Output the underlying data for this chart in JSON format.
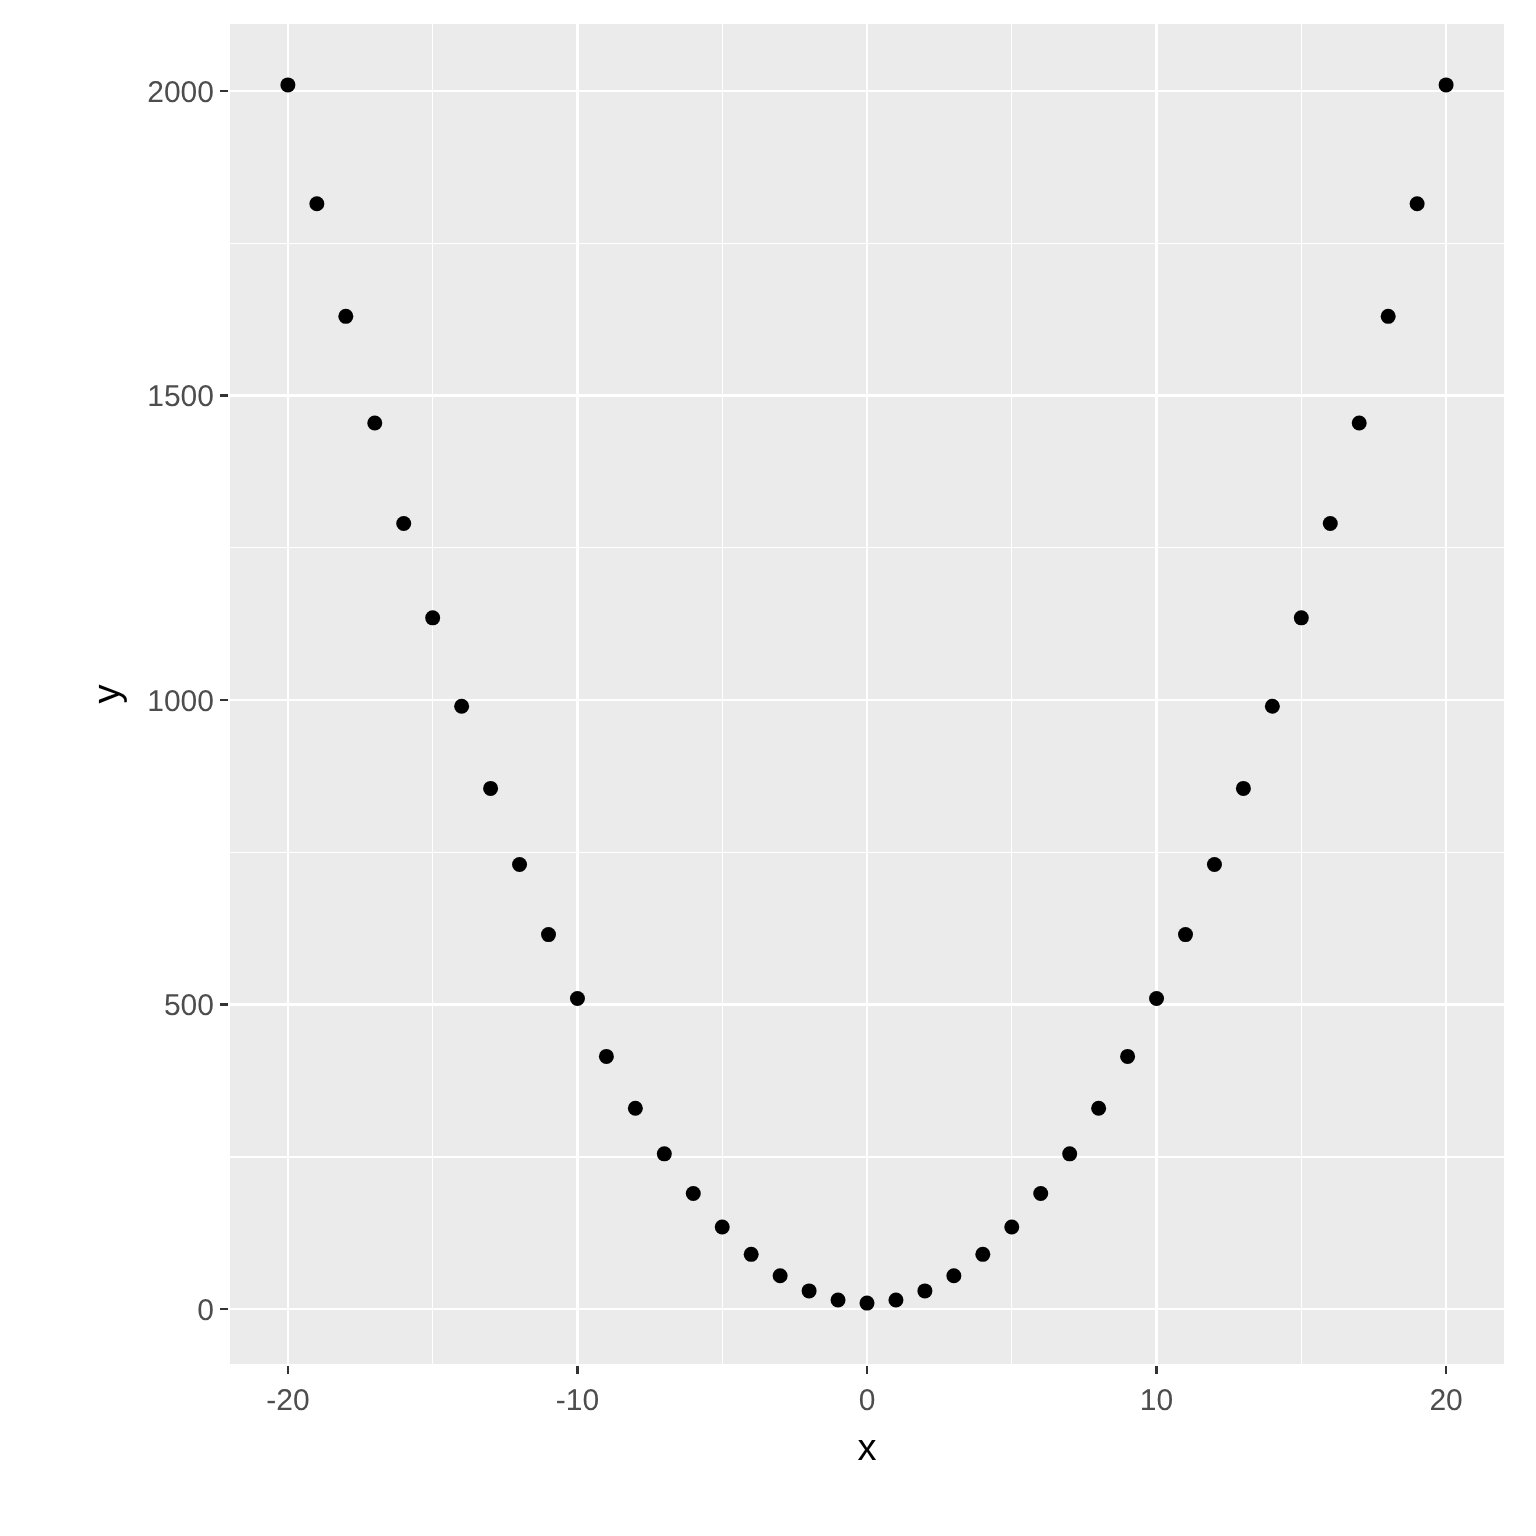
{
  "chart_data": {
    "type": "scatter",
    "xlabel": "x",
    "ylabel": "y",
    "x": [
      -20,
      -19,
      -18,
      -17,
      -16,
      -15,
      -14,
      -13,
      -12,
      -11,
      -10,
      -9,
      -8,
      -7,
      -6,
      -5,
      -4,
      -3,
      -2,
      -1,
      0,
      1,
      2,
      3,
      4,
      5,
      6,
      7,
      8,
      9,
      10,
      11,
      12,
      13,
      14,
      15,
      16,
      17,
      18,
      19,
      20
    ],
    "series": [
      {
        "color": "#000000",
        "values": [
          2010,
          1815,
          1630,
          1455,
          1290,
          1135,
          990,
          855,
          730,
          615,
          510,
          415,
          330,
          255,
          190,
          135,
          90,
          55,
          30,
          15,
          10,
          15,
          30,
          55,
          90,
          135,
          190,
          255,
          330,
          415,
          510,
          615,
          730,
          855,
          990,
          1135,
          1290,
          1455,
          1630,
          1815,
          2010
        ]
      }
    ],
    "xlim": [
      -22,
      22
    ],
    "xticks": [
      -20,
      -10,
      0,
      10,
      20
    ],
    "ylim": [
      -90,
      2110
    ],
    "yticks": [
      0,
      500,
      1000,
      1500,
      2000
    ],
    "grid": true,
    "marker": "circle"
  }
}
